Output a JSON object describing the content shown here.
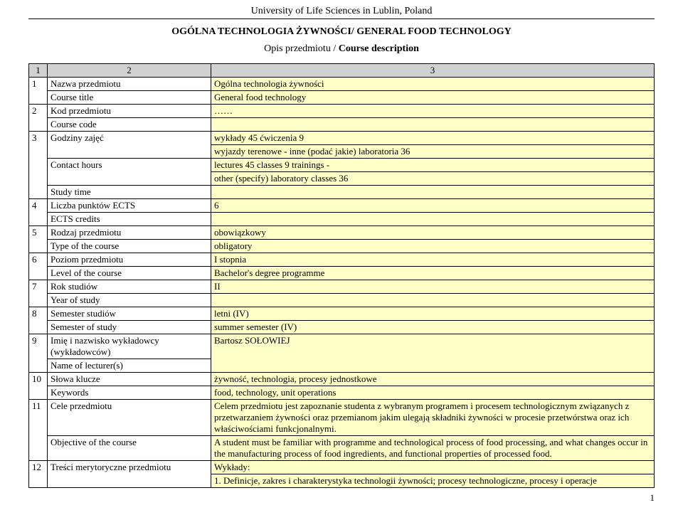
{
  "header": {
    "university": "University of Life Sciences in Lublin, Poland",
    "course_heading_pl": "OGÓLNA TECHNOLOGIA ŻYWNOŚCI/",
    "course_heading_en": " GENERAL FOOD TECHNOLOGY",
    "subtitle_pl": "Opis przedmiotu / ",
    "subtitle_en": "Course description"
  },
  "colheads": {
    "c1": "1",
    "c2": "2",
    "c3": "3"
  },
  "rows": {
    "r1": {
      "n": "1",
      "l_pl": "Nazwa przedmiotu",
      "l_en": "Course title",
      "v_pl": "Ogólna technologia żywności",
      "v_en": "General food technology"
    },
    "r2": {
      "n": "2",
      "l_pl": "Kod przedmiotu",
      "l_en": "Course code",
      "v_pl": "……",
      "v_en": ""
    },
    "r3": {
      "n": "3",
      "l_pl": "Godziny zajęć",
      "l_en": "Contact hours",
      "l_en2": "Study time",
      "v_pl": "wykłady 45  ćwiczenia 9",
      "v_pl2": "wyjazdy terenowe -  inne (podać jakie) laboratoria 36",
      "v_en": "lectures 45   classes 9   trainings -",
      "v_en2": "other (specify) laboratory classes 36",
      "v_en3": ""
    },
    "r4": {
      "n": "4",
      "l_pl": "Liczba punktów ECTS",
      "l_en": "ECTS credits",
      "v_pl": "6",
      "v_en": ""
    },
    "r5": {
      "n": "5",
      "l_pl": "Rodzaj przedmiotu",
      "l_en": "Type of the course",
      "v_pl": "obowiązkowy",
      "v_en": "obligatory"
    },
    "r6": {
      "n": "6",
      "l_pl": "Poziom przedmiotu",
      "l_en": "Level of the course",
      "v_pl": "I stopnia",
      "v_en": "Bachelor's degree programme"
    },
    "r7": {
      "n": "7",
      "l_pl": "Rok studiów",
      "l_en": "Year of study",
      "v_pl": "II",
      "v_en": ""
    },
    "r8": {
      "n": "8",
      "l_pl": "Semester studiów",
      "l_en": "Semester of study",
      "v_pl": "letni  (IV)",
      "v_en": "summer semester  (IV)"
    },
    "r9": {
      "n": "9",
      "l_pl": "Imię i nazwisko wykładowcy (wykładowców)",
      "l_en": "Name of lecturer(s)",
      "v_pl": "Bartosz SOŁOWIEJ",
      "v_en": ""
    },
    "r10": {
      "n": "10",
      "l_pl": "Słowa klucze",
      "l_en": "Keywords",
      "v_pl": "żywność, technologia, procesy jednostkowe",
      "v_en": "food, technology, unit operations"
    },
    "r11": {
      "n": "11",
      "l_pl": "Cele przedmiotu",
      "l_en": "Objective of the course",
      "v_pl": "Celem przedmiotu jest zapoznanie studenta z wybranym programem i procesem technologicznym związanych z przetwarzaniem żywności oraz przemianom jakim ulegają składniki żywności w procesie przetwórstwa oraz ich właściwościami funkcjonalnymi.",
      "v_en": "A student must be familiar with programme and technological process of food processing, and what changes occur in the manufacturing process of food ingredients, and functional properties of processed food."
    },
    "r12": {
      "n": "12",
      "l_pl": "Treści merytoryczne przedmiotu",
      "v_pl": "Wykłady:",
      "v_pl2": "1. Definicje, zakres i charakterystyka technologii żywności; procesy technologiczne, procesy i operacje"
    }
  },
  "pageNumber": "1"
}
